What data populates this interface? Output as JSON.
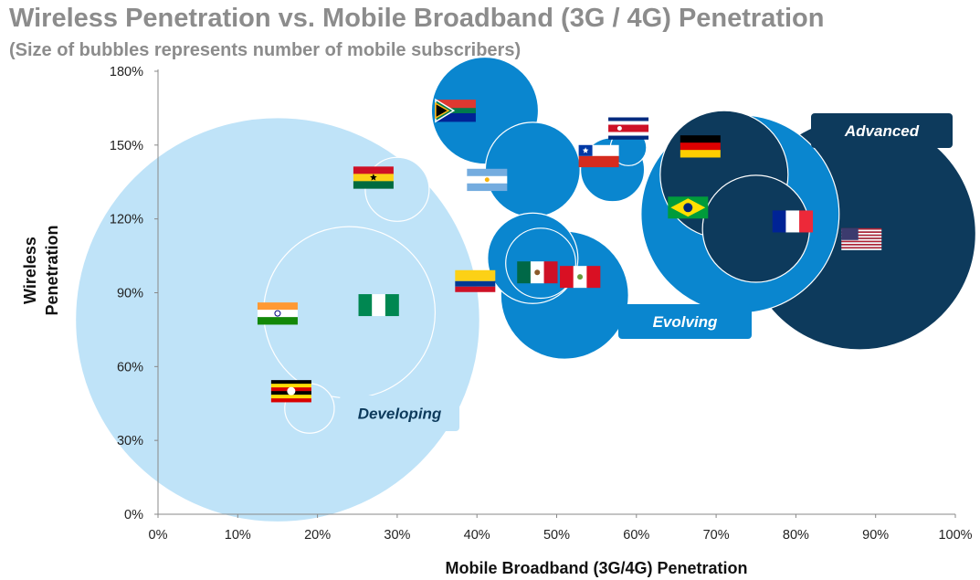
{
  "chart_data": {
    "type": "scatter",
    "title": "Wireless Penetration vs. Mobile Broadband (3G / 4G) Penetration",
    "subtitle": "(Size of bubbles represents number of mobile subscribers)",
    "xlabel": "Mobile Broadband (3G/4G) Penetration",
    "ylabel_lines": [
      "Wireless",
      "Penetration"
    ],
    "xlim": [
      0,
      100
    ],
    "ylim": [
      0,
      180
    ],
    "x_ticks": [
      0,
      10,
      20,
      30,
      40,
      50,
      60,
      70,
      80,
      90,
      100
    ],
    "y_ticks": [
      0,
      30,
      60,
      90,
      120,
      150,
      180
    ],
    "tick_suffix": "%",
    "grid": false,
    "colors": {
      "light": "#bfe3f8",
      "mid": "#0a86cf",
      "dark": "#0d3a5c",
      "axis": "#888888"
    },
    "tiers": [
      {
        "label": "Advanced",
        "style": "dark"
      },
      {
        "label": "Evolving",
        "style": "mid"
      },
      {
        "label": "Developing",
        "style": "light"
      }
    ],
    "points": [
      {
        "flag": "india",
        "x": 15,
        "y": 79,
        "size": 1000,
        "tier": "light"
      },
      {
        "flag": "nigeria",
        "x": 24,
        "y": 82,
        "size": 180,
        "tier": "light"
      },
      {
        "flag": "ghana",
        "x": 30,
        "y": 132,
        "size": 25,
        "tier": "light"
      },
      {
        "flag": "uganda",
        "x": 19,
        "y": 43,
        "size": 15,
        "tier": "light"
      },
      {
        "flag": "south-africa",
        "x": 41,
        "y": 164,
        "size": 70,
        "tier": "mid"
      },
      {
        "flag": "argentina",
        "x": 47,
        "y": 140,
        "size": 55,
        "tier": "mid"
      },
      {
        "flag": "chile",
        "x": 57,
        "y": 140,
        "size": 25,
        "tier": "mid"
      },
      {
        "flag": "costa-rica",
        "x": 59,
        "y": 149,
        "size": 8,
        "tier": "mid"
      },
      {
        "flag": "colombia",
        "x": 47,
        "y": 104,
        "size": 50,
        "tier": "mid"
      },
      {
        "flag": "peru",
        "x": 48,
        "y": 102,
        "size": 30,
        "tier": "mid"
      },
      {
        "flag": "mexico",
        "x": 51,
        "y": 89,
        "size": 100,
        "tier": "mid"
      },
      {
        "flag": "germany",
        "x": 71,
        "y": 138,
        "size": 100,
        "tier": "dark"
      },
      {
        "flag": "brazil",
        "x": 73,
        "y": 122,
        "size": 240,
        "tier": "mid"
      },
      {
        "flag": "france",
        "x": 75,
        "y": 116,
        "size": 70,
        "tier": "dark"
      },
      {
        "flag": "united-states",
        "x": 88,
        "y": 114,
        "size": 330,
        "tier": "dark"
      }
    ]
  }
}
